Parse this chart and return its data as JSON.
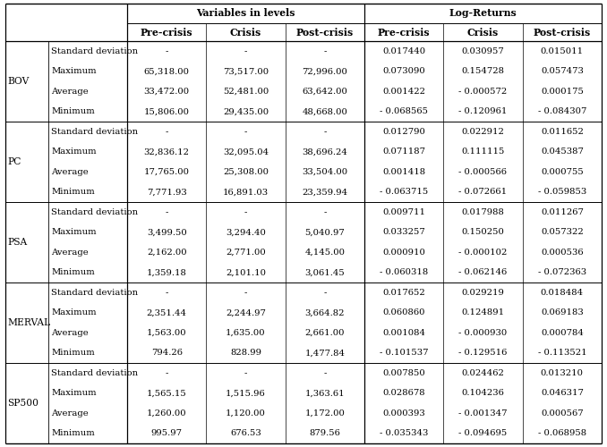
{
  "groups": [
    {
      "label": "BOV",
      "rows": [
        [
          "Standard deviation",
          "-",
          "-",
          "-",
          "0.017440",
          "0.030957",
          "0.015011"
        ],
        [
          "Maximum",
          "65,318.00",
          "73,517.00",
          "72,996.00",
          "0.073090",
          "0.154728",
          "0.057473"
        ],
        [
          "Average",
          "33,472.00",
          "52,481.00",
          "63,642.00",
          "0.001422",
          "- 0.000572",
          "0.000175"
        ],
        [
          "Minimum",
          "15,806.00",
          "29,435.00",
          "48,668.00",
          "- 0.068565",
          "- 0.120961",
          "- 0.084307"
        ]
      ]
    },
    {
      "label": "PC",
      "rows": [
        [
          "Standard deviation",
          "-",
          "-",
          "-",
          "0.012790",
          "0.022912",
          "0.011652"
        ],
        [
          "Maximum",
          "32,836.12",
          "32,095.04",
          "38,696.24",
          "0.071187",
          "0.111115",
          "0.045387"
        ],
        [
          "Average",
          "17,765.00",
          "25,308.00",
          "33,504.00",
          "0.001418",
          "- 0.000566",
          "0.000755"
        ],
        [
          "Minimum",
          "7,771.93",
          "16,891.03",
          "23,359.94",
          "- 0.063715",
          "- 0.072661",
          "- 0.059853"
        ]
      ]
    },
    {
      "label": "PSA",
      "rows": [
        [
          "Standard deviation",
          "-",
          "-",
          "-",
          "0.009711",
          "0.017988",
          "0.011267"
        ],
        [
          "Maximum",
          "3,499.50",
          "3,294.40",
          "5,040.97",
          "0.033257",
          "0.150250",
          "0.057322"
        ],
        [
          "Average",
          "2,162.00",
          "2,771.00",
          "4,145.00",
          "0.000910",
          "- 0.000102",
          "0.000536"
        ],
        [
          "Minimum",
          "1,359.18",
          "2,101.10",
          "3,061.45",
          "- 0.060318",
          "- 0.062146",
          "- 0.072363"
        ]
      ]
    },
    {
      "label": "MERVAL",
      "rows": [
        [
          "Standard deviation",
          "-",
          "-",
          "-",
          "0.017652",
          "0.029219",
          "0.018484"
        ],
        [
          "Maximum",
          "2,351.44",
          "2,244.97",
          "3,664.82",
          "0.060860",
          "0.124891",
          "0.069183"
        ],
        [
          "Average",
          "1,563.00",
          "1,635.00",
          "2,661.00",
          "0.001084",
          "- 0.000930",
          "0.000784"
        ],
        [
          "Minimum",
          "794.26",
          "828.99",
          "1,477.84",
          "- 0.101537",
          "- 0.129516",
          "- 0.113521"
        ]
      ]
    },
    {
      "label": "SP500",
      "rows": [
        [
          "Standard deviation",
          "-",
          "-",
          "-",
          "0.007850",
          "0.024462",
          "0.013210"
        ],
        [
          "Maximum",
          "1,565.15",
          "1,515.96",
          "1,363.61",
          "0.028678",
          "0.104236",
          "0.046317"
        ],
        [
          "Average",
          "1,260.00",
          "1,120.00",
          "1,172.00",
          "0.000393",
          "- 0.001347",
          "0.000567"
        ],
        [
          "Minimum",
          "995.97",
          "676.53",
          "879.56",
          "- 0.035343",
          "- 0.094695",
          "- 0.068958"
        ]
      ]
    }
  ],
  "bg_color": "#ffffff",
  "line_color": "#000000",
  "font_size": 7.2,
  "header_font_size": 7.8
}
